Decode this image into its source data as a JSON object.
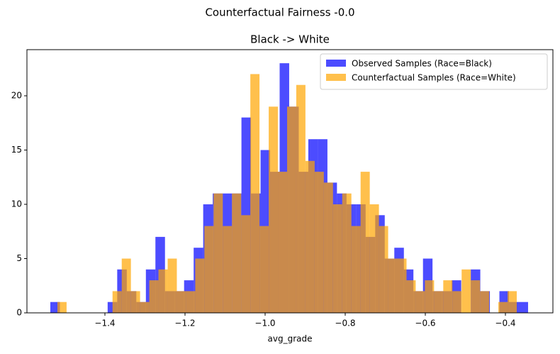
{
  "chart_data": {
    "type": "histogram",
    "suptitle": "Counterfactual Fairness -0.0",
    "title": "Black -> White",
    "x_label": "avg_grade",
    "xlim": [
      -1.5947,
      -0.2814
    ],
    "ylim": [
      0,
      24.25
    ],
    "xticks": [
      {
        "value": -1.4,
        "label": "−1.4"
      },
      {
        "value": -1.2,
        "label": "−1.2"
      },
      {
        "value": -1.0,
        "label": "−1.0"
      },
      {
        "value": -0.8,
        "label": "−0.8"
      },
      {
        "value": -0.6,
        "label": "−0.6"
      },
      {
        "value": -0.4,
        "label": "−0.4"
      }
    ],
    "yticks": [
      0,
      5,
      10,
      15,
      20
    ],
    "legend": "upper right",
    "opacity": 0.7,
    "series": [
      {
        "name": "Observed Samples (Race=Black)",
        "color": "#0000ff",
        "bins": [
          -1.5363,
          -1.5124,
          -1.4886,
          -1.4647,
          -1.4409,
          -1.417,
          -1.3932,
          -1.3693,
          -1.3454,
          -1.3216,
          -1.2977,
          -1.2739,
          -1.25,
          -1.2261,
          -1.2023,
          -1.1784,
          -1.1546,
          -1.1307,
          -1.1069,
          -1.083,
          -1.0591,
          -1.0353,
          -1.0114,
          -0.9876,
          -0.9637,
          -0.9399,
          -0.916,
          -0.8921,
          -0.8683,
          -0.8444,
          -0.8206,
          -0.7967,
          -0.7728,
          -0.749,
          -0.7251,
          -0.7013,
          -0.6774,
          -0.6535,
          -0.6297,
          -0.6058,
          -0.582,
          -0.5581,
          -0.5343,
          -0.5104,
          -0.4865,
          -0.4627,
          -0.4388,
          -0.415,
          -0.3911,
          -0.3672,
          -0.3434
        ],
        "values": [
          1,
          0,
          0,
          0,
          0,
          0,
          1,
          4,
          2,
          1,
          4,
          7,
          2,
          2,
          3,
          6,
          10,
          11,
          11,
          11,
          18,
          11,
          15,
          13,
          23,
          19,
          13,
          16,
          16,
          12,
          11,
          10,
          10,
          7,
          9,
          5,
          6,
          4,
          2,
          5,
          2,
          2,
          3,
          0,
          4,
          2,
          0,
          2,
          1,
          1
        ]
      },
      {
        "name": "Counterfactual Samples (Race=White)",
        "color": "#ffa500",
        "bins": [
          -1.5186,
          -1.4957,
          -1.4727,
          -1.4498,
          -1.4268,
          -1.4039,
          -1.381,
          -1.358,
          -1.3351,
          -1.3122,
          -1.2892,
          -1.2663,
          -1.2433,
          -1.2204,
          -1.1975,
          -1.1745,
          -1.1516,
          -1.1286,
          -1.1057,
          -1.0828,
          -1.0598,
          -1.0369,
          -1.014,
          -0.991,
          -0.9681,
          -0.9451,
          -0.9222,
          -0.8993,
          -0.8763,
          -0.8534,
          -0.8305,
          -0.8075,
          -0.7846,
          -0.7616,
          -0.7387,
          -0.7158,
          -0.6928,
          -0.6699,
          -0.6469,
          -0.624,
          -0.6011,
          -0.5781,
          -0.5552,
          -0.5323,
          -0.5093,
          -0.4864,
          -0.4634,
          -0.4405,
          -0.4176,
          -0.3946,
          -0.3717
        ],
        "values": [
          1,
          0,
          0,
          0,
          0,
          0,
          2,
          5,
          2,
          1,
          3,
          4,
          5,
          2,
          2,
          5,
          8,
          11,
          8,
          11,
          9,
          22,
          8,
          19,
          13,
          19,
          21,
          14,
          13,
          12,
          10,
          11,
          8,
          13,
          10,
          8,
          5,
          5,
          3,
          2,
          3,
          2,
          3,
          2,
          4,
          3,
          2,
          0,
          1,
          2
        ]
      }
    ]
  }
}
